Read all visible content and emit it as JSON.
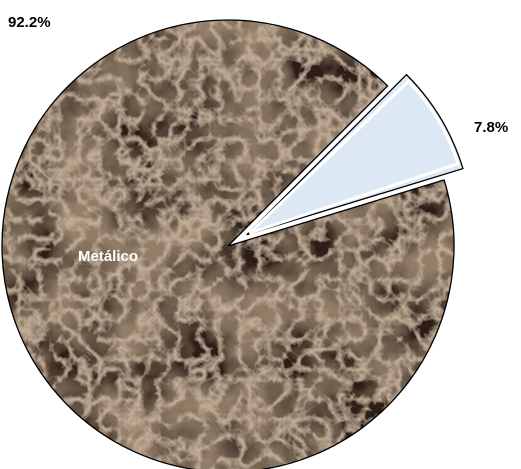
{
  "chart_data": {
    "type": "pie",
    "title": "",
    "slices": [
      {
        "name": "Metálico",
        "value": 92.2,
        "percent_label": "92.2%",
        "inner_label": "Metálico",
        "fill": "#4a3524",
        "texture": "brown-marble"
      },
      {
        "name": "",
        "value": 7.8,
        "percent_label": "7.8%",
        "inner_label": "",
        "fill": "#dde8f5",
        "exploded": true
      }
    ],
    "legend": "none"
  },
  "colors": {
    "outline": "#000000",
    "background": "#ffffff"
  }
}
